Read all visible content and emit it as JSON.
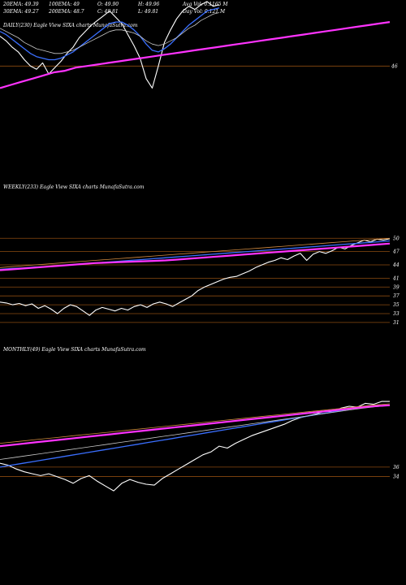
{
  "header": {
    "row1": [
      "20EMA: 49.39",
      "100EMA: 49",
      "O: 49.90",
      "H: 49.96",
      "Avg Vol: 0.1165 M"
    ],
    "row2": [
      "30EMA: 49.27",
      "200EMA: 48.7",
      "C: 49.81",
      "L: 49.81",
      "Day Vol: 0.121 M"
    ]
  },
  "colors": {
    "background": "#000000",
    "price": "#ffffff",
    "ema_fast": "#3a6fff",
    "ema_mid": "#c8c8c8",
    "ema_slow": "#ff33ff",
    "ema_long": "#d08a40",
    "gridline": "#8a4a10"
  },
  "chart_data": [
    {
      "type": "line",
      "title": "DAILY(230) Eagle  View  SIXA charts MunafaSutra.com",
      "y_ticks": [
        "46"
      ],
      "series": [
        {
          "role": "price",
          "values": [
            47.9,
            47.6,
            47.2,
            46.9,
            46.4,
            46.0,
            45.8,
            46.2,
            45.5,
            45.9,
            46.3,
            46.8,
            47.2,
            47.8,
            48.2,
            48.6,
            48.9,
            49.2,
            49.5,
            49.1,
            48.7,
            48.0,
            47.3,
            46.5,
            45.2,
            44.6,
            46.0,
            47.5,
            48.3,
            49.0,
            49.5,
            49.8,
            49.6,
            49.9,
            50.1,
            49.8,
            49.9
          ]
        },
        {
          "role": "ema_fast",
          "values": [
            48.2,
            48.0,
            47.7,
            47.4,
            47.1,
            46.8,
            46.6,
            46.5,
            46.4,
            46.4,
            46.5,
            46.7,
            46.9,
            47.2,
            47.5,
            47.8,
            48.1,
            48.4,
            48.7,
            48.8,
            48.8,
            48.6,
            48.3,
            47.9,
            47.4,
            47.0,
            46.9,
            47.1,
            47.4,
            47.8,
            48.2,
            48.6,
            48.9,
            49.2,
            49.5,
            49.6,
            49.7
          ]
        },
        {
          "role": "ema_mid",
          "values": [
            48.4,
            48.2,
            48.0,
            47.8,
            47.5,
            47.3,
            47.1,
            47.0,
            46.9,
            46.8,
            46.8,
            46.9,
            47.0,
            47.2,
            47.4,
            47.6,
            47.8,
            48.0,
            48.2,
            48.3,
            48.3,
            48.2,
            48.1,
            47.9,
            47.6,
            47.4,
            47.3,
            47.4,
            47.6,
            47.8,
            48.1,
            48.4,
            48.6,
            48.9,
            49.1,
            49.3,
            49.4
          ]
        },
        {
          "role": "ema_slow",
          "values": [
            44.6,
            44.8,
            45.0,
            45.2,
            45.4,
            45.6,
            45.7,
            45.9,
            46.0,
            46.1,
            46.2,
            46.3,
            46.4,
            46.5,
            46.6,
            46.7,
            46.8,
            46.9,
            47.0,
            47.1,
            47.2,
            47.3,
            47.4,
            47.5,
            47.6,
            47.7,
            47.8,
            47.9,
            48.0,
            48.1,
            48.2,
            48.3,
            48.4,
            48.5,
            48.6,
            48.7,
            48.8
          ]
        }
      ]
    },
    {
      "type": "line",
      "title": "WEEKLY(233) Eagle  View  SIXA charts MunafaSutra.com",
      "y_ticks": [
        "50",
        "47",
        "44",
        "41",
        "39",
        "37",
        "35",
        "33",
        "31"
      ],
      "series": [
        {
          "role": "price",
          "values": [
            35.6,
            35.4,
            35.0,
            35.3,
            34.8,
            35.2,
            34.2,
            34.8,
            34.0,
            33.0,
            34.2,
            35.0,
            34.6,
            33.6,
            32.6,
            33.8,
            34.4,
            34.0,
            33.6,
            34.2,
            33.8,
            34.6,
            35.0,
            34.4,
            35.2,
            35.6,
            35.2,
            34.6,
            35.4,
            36.2,
            37.0,
            38.2,
            39.0,
            39.6,
            40.2,
            40.8,
            41.2,
            41.4,
            42.0,
            42.6,
            43.4,
            44.0,
            44.6,
            45.0,
            45.6,
            45.2,
            46.0,
            46.6,
            45.0,
            46.4,
            47.0,
            46.6,
            47.2,
            48.0,
            47.6,
            48.4,
            49.0,
            49.6,
            49.2,
            49.8,
            49.6,
            49.9
          ]
        },
        {
          "role": "ema_fast",
          "values": [
            43.0,
            43.2,
            43.3,
            43.5,
            43.6,
            43.8,
            44.0,
            44.2,
            44.4,
            44.6,
            44.8,
            45.0,
            45.2,
            45.4,
            45.6,
            45.8,
            46.0,
            46.2,
            46.4,
            46.6,
            46.8,
            47.0,
            47.2,
            47.4,
            47.6,
            47.8,
            48.0,
            48.2,
            48.4,
            48.6,
            48.8,
            49.0,
            49.2,
            49.4
          ]
        },
        {
          "role": "ema_slow",
          "values": [
            42.8,
            43.0,
            43.2,
            43.4,
            43.6,
            43.8,
            44.0,
            44.2,
            44.4,
            44.5,
            44.6,
            44.7,
            44.8,
            44.9,
            45.0,
            45.2,
            45.4,
            45.6,
            45.8,
            46.0,
            46.2,
            46.4,
            46.6,
            46.8,
            47.0,
            47.2,
            47.4,
            47.6,
            47.8,
            48.0,
            48.2,
            48.4,
            48.6,
            48.8
          ]
        },
        {
          "role": "ema_long",
          "values": [
            43.4,
            43.6,
            43.8,
            44.0,
            44.2,
            44.4,
            44.6,
            44.8,
            45.0,
            45.2,
            45.4,
            45.6,
            45.8,
            46.0,
            46.2,
            46.4,
            46.6,
            46.8,
            47.0,
            47.2,
            47.4,
            47.6,
            47.8,
            48.0,
            48.2,
            48.4,
            48.6,
            48.8,
            49.0,
            49.2,
            49.4,
            49.6,
            49.8,
            50.0
          ]
        }
      ]
    },
    {
      "type": "line",
      "title": "MONTHLY(49) Eagle  View  SIXA charts MunafaSutra.com",
      "y_ticks": [
        "36",
        "34"
      ],
      "series": [
        {
          "role": "price",
          "values": [
            36.8,
            36.4,
            35.6,
            35.0,
            34.6,
            34.2,
            34.6,
            34.0,
            33.4,
            32.6,
            33.6,
            34.2,
            33.0,
            32.0,
            31.0,
            32.6,
            33.4,
            32.8,
            32.4,
            32.2,
            33.6,
            34.6,
            35.6,
            36.6,
            37.6,
            38.6,
            39.2,
            40.4,
            40.0,
            41.0,
            41.8,
            42.6,
            43.2,
            43.8,
            44.4,
            45.0,
            45.8,
            46.4,
            46.8,
            47.2,
            47.8,
            47.6,
            48.4,
            48.8,
            48.6,
            49.4,
            49.2,
            49.8,
            49.8
          ]
        },
        {
          "role": "ema_fast",
          "values": [
            36.0,
            36.4,
            36.8,
            37.2,
            37.6,
            38.0,
            38.4,
            38.8,
            39.2,
            39.6,
            40.0,
            40.4,
            40.8,
            41.2,
            41.6,
            42.0,
            42.4,
            42.8,
            43.2,
            43.6,
            44.0,
            44.4,
            44.8,
            45.2,
            45.6,
            46.0,
            46.4,
            46.8,
            47.2,
            47.6,
            48.0,
            48.4,
            48.6,
            48.8,
            49.0
          ]
        },
        {
          "role": "ema_mid",
          "values": [
            37.6,
            38.0,
            38.4,
            38.8,
            39.2,
            39.6,
            40.0,
            40.4,
            40.8,
            41.2,
            41.6,
            42.0,
            42.4,
            42.8,
            43.2,
            43.6,
            44.0,
            44.4,
            44.8,
            45.2,
            45.6,
            46.0,
            46.4,
            46.8,
            47.2,
            47.6,
            48.0,
            48.4,
            48.7,
            49.0
          ]
        },
        {
          "role": "ema_slow",
          "values": [
            40.4,
            40.8,
            41.2,
            41.6,
            42.0,
            42.4,
            42.8,
            43.2,
            43.6,
            44.0,
            44.4,
            44.8,
            45.2,
            45.6,
            46.0,
            46.4,
            46.8,
            47.2,
            47.6,
            48.0,
            48.4,
            48.8,
            49.0
          ]
        },
        {
          "role": "ema_long",
          "values": [
            41.0,
            41.4,
            41.8,
            42.2,
            42.6,
            43.0,
            43.4,
            43.8,
            44.2,
            44.6,
            45.0,
            45.4,
            45.8,
            46.2,
            46.6,
            47.0,
            47.4,
            47.8,
            48.2,
            48.6,
            49.0,
            49.3
          ]
        }
      ]
    }
  ]
}
